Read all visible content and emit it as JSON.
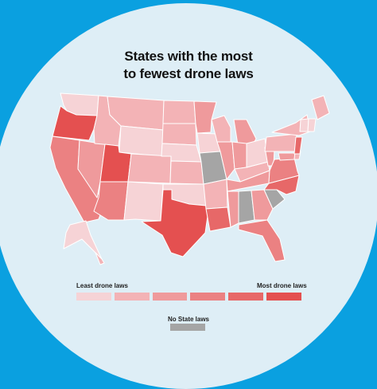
{
  "title_line1": "States with the most",
  "title_line2": "to fewest drone laws",
  "legend": {
    "least_label": "Least drone laws",
    "most_label": "Most drone laws",
    "no_laws_label": "No State laws",
    "scale_colors": [
      "#f6d3d6",
      "#f3b3b6",
      "#ef9a9c",
      "#eb8182",
      "#e76868",
      "#e45050"
    ],
    "no_laws_color": "#a5a5a5"
  },
  "colors": {
    "background": "#0aa0e0",
    "circle": "#deeef6",
    "map_border": "#ffffff"
  },
  "states": {
    "WA": 1,
    "OR": 6,
    "CA": 4,
    "NV": 3,
    "ID": 2,
    "MT": 2,
    "WY": 1,
    "UT": 6,
    "AZ": 4,
    "CO": 2,
    "NM": 1,
    "ND": 2,
    "SD": 2,
    "NE": 1,
    "KS": 2,
    "OK": 1,
    "TX": 6,
    "MN": 3,
    "IA": 1,
    "MO": 0,
    "AR": 2,
    "LA": 5,
    "WI": 2,
    "IL": 3,
    "MS": 3,
    "MI": 3,
    "IN": 3,
    "KY": 2,
    "TN": 3,
    "AL": 0,
    "OH": 1,
    "WV": 3,
    "GA": 3,
    "FL": 4,
    "SC": 0,
    "NC": 5,
    "VA": 4,
    "PA": 2,
    "NY": 2,
    "ME": 2,
    "VT": 1,
    "NH": 1,
    "MD": 3,
    "DE": 2,
    "NJ": 5,
    "AK": 1,
    "HI": 2
  }
}
